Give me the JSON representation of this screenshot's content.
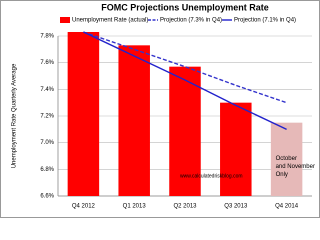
{
  "chart_data": {
    "type": "bar",
    "title": "FOMC Projections Unemployment Rate",
    "y_label": "Unemployment Rate Quarterly Average",
    "categories": [
      "Q4 2012",
      "Q1 2013",
      "Q2 2013",
      "Q3 2013",
      "Q4 2014"
    ],
    "series": [
      {
        "name": "Unemployment Rate (actual)",
        "type": "bar",
        "color": "#ff0000",
        "colors": [
          "#ff0000",
          "#ff0000",
          "#ff0000",
          "#ff0000",
          "#e6b9b8"
        ],
        "values": [
          7.83,
          7.73,
          7.57,
          7.3,
          7.15
        ]
      },
      {
        "name": "Projection (7.3% in Q4)",
        "type": "line",
        "dashed": true,
        "color": "#3333cc",
        "values": [
          7.83,
          7.7,
          7.57,
          7.43,
          7.3
        ]
      },
      {
        "name": "Projection (7.1% in Q4)",
        "type": "line",
        "dashed": false,
        "color": "#2222cc",
        "values": [
          7.83,
          7.65,
          7.47,
          7.28,
          7.1
        ]
      }
    ],
    "ylim": [
      6.6,
      7.8
    ],
    "yticks": [
      {
        "value": 6.6,
        "label": "6.6%"
      },
      {
        "value": 6.8,
        "label": "6.8%"
      },
      {
        "value": 7.0,
        "label": "7.0%"
      },
      {
        "value": 7.2,
        "label": "7.2%"
      },
      {
        "value": 7.4,
        "label": "7.4%"
      },
      {
        "value": 7.6,
        "label": "7.6%"
      },
      {
        "value": 7.8,
        "label": "7.8%"
      }
    ],
    "grid": true,
    "annotation": "October and November Only",
    "watermark": "www.calculatedriskblog.com"
  }
}
